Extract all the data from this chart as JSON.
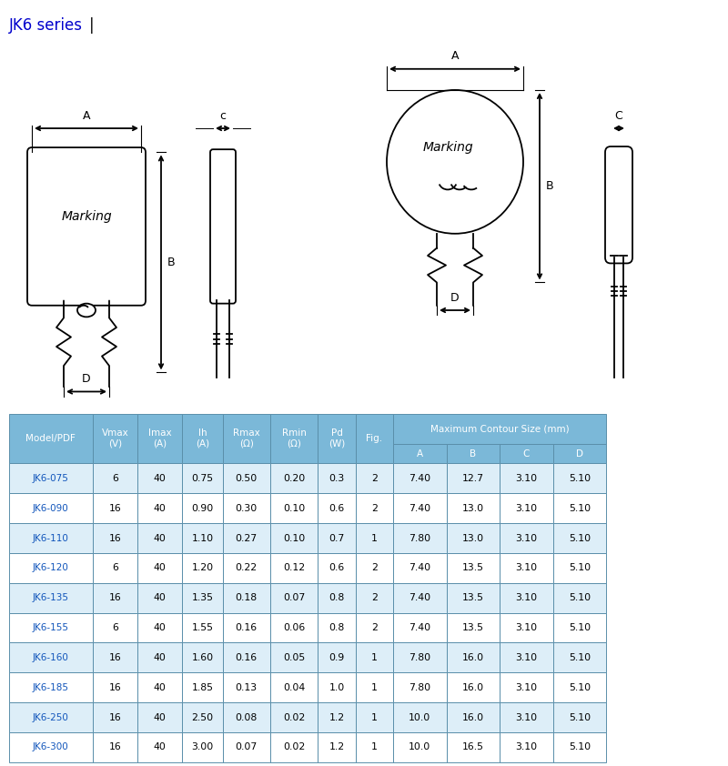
{
  "title": "JK6 series",
  "title_color": "#0000CC",
  "table_header_bg": "#7BB8D8",
  "table_border_color": "#5A8FAA",
  "model_color": "#1155BB",
  "rows": [
    [
      "JK6-075",
      "6",
      "40",
      "0.75",
      "0.50",
      "0.20",
      "0.3",
      "2",
      "7.40",
      "12.7",
      "3.10",
      "5.10"
    ],
    [
      "JK6-090",
      "16",
      "40",
      "0.90",
      "0.30",
      "0.10",
      "0.6",
      "2",
      "7.40",
      "13.0",
      "3.10",
      "5.10"
    ],
    [
      "JK6-110",
      "16",
      "40",
      "1.10",
      "0.27",
      "0.10",
      "0.7",
      "1",
      "7.80",
      "13.0",
      "3.10",
      "5.10"
    ],
    [
      "JK6-120",
      "6",
      "40",
      "1.20",
      "0.22",
      "0.12",
      "0.6",
      "2",
      "7.40",
      "13.5",
      "3.10",
      "5.10"
    ],
    [
      "JK6-135",
      "16",
      "40",
      "1.35",
      "0.18",
      "0.07",
      "0.8",
      "2",
      "7.40",
      "13.5",
      "3.10",
      "5.10"
    ],
    [
      "JK6-155",
      "6",
      "40",
      "1.55",
      "0.16",
      "0.06",
      "0.8",
      "2",
      "7.40",
      "13.5",
      "3.10",
      "5.10"
    ],
    [
      "JK6-160",
      "16",
      "40",
      "1.60",
      "0.16",
      "0.05",
      "0.9",
      "1",
      "7.80",
      "16.0",
      "3.10",
      "5.10"
    ],
    [
      "JK6-185",
      "16",
      "40",
      "1.85",
      "0.13",
      "0.04",
      "1.0",
      "1",
      "7.80",
      "16.0",
      "3.10",
      "5.10"
    ],
    [
      "JK6-250",
      "16",
      "40",
      "2.50",
      "0.08",
      "0.02",
      "1.2",
      "1",
      "10.0",
      "16.0",
      "3.10",
      "5.10"
    ],
    [
      "JK6-300",
      "16",
      "40",
      "3.00",
      "0.07",
      "0.02",
      "1.2",
      "1",
      "10.0",
      "16.5",
      "3.10",
      "5.10"
    ]
  ]
}
